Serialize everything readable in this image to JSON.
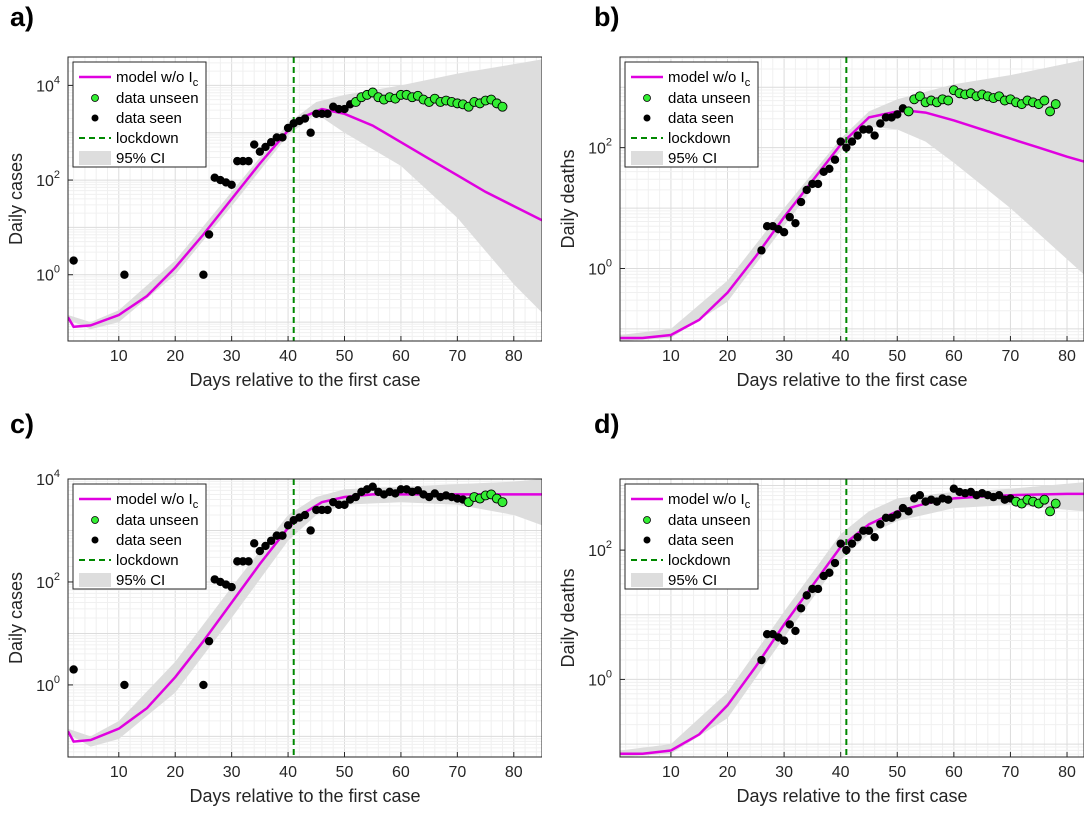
{
  "colors": {
    "model": "#e000e0",
    "unseen": "#33ee33",
    "seen": "#000000",
    "lockdown": "#008800",
    "ci": "#dddddd",
    "grid": "#e4e4e4"
  },
  "chart_data": [
    {
      "label": "a)",
      "type": "scatter",
      "xlabel": "Days relative to the first case",
      "ylabel": "Daily cases",
      "xlim": [
        1,
        85
      ],
      "ylog": true,
      "ylim_exp": [
        -1.4,
        4.6
      ],
      "xticks": [
        10,
        20,
        30,
        40,
        50,
        60,
        70,
        80
      ],
      "yticks": [
        {
          "exp": 0,
          "base": "10",
          "sup": "0"
        },
        {
          "exp": 2,
          "base": "10",
          "sup": "2"
        },
        {
          "exp": 4,
          "base": "10",
          "sup": "4"
        }
      ],
      "grid": true,
      "legend": {
        "position": "top-left",
        "model": "model w/o I",
        "model_sub": "c",
        "unseen": "data unseen",
        "seen": "data seen",
        "lockdown": "lockdown",
        "ci": "95% CI"
      },
      "lockdown_day": 41,
      "model_line": {
        "x": [
          1,
          2,
          5,
          10,
          15,
          20,
          25,
          30,
          35,
          40,
          43,
          46,
          50,
          55,
          60,
          65,
          70,
          75,
          80,
          85
        ],
        "log10y": [
          -0.9,
          -1.1,
          -1.07,
          -0.85,
          -0.45,
          0.15,
          0.85,
          1.6,
          2.35,
          3.05,
          3.35,
          3.5,
          3.4,
          3.15,
          2.8,
          2.45,
          2.1,
          1.75,
          1.45,
          1.15
        ]
      },
      "ci_upper": {
        "x": [
          1,
          5,
          10,
          20,
          30,
          40,
          45,
          50,
          60,
          70,
          85
        ],
        "log10y": [
          -0.85,
          -1.0,
          -0.75,
          0.3,
          1.75,
          3.2,
          3.65,
          3.8,
          4.0,
          4.25,
          4.55
        ]
      },
      "ci_lower": {
        "x": [
          1,
          5,
          10,
          20,
          30,
          40,
          45,
          50,
          60,
          70,
          80,
          85
        ],
        "log10y": [
          -0.95,
          -1.15,
          -1.0,
          0.0,
          1.45,
          2.95,
          3.4,
          3.0,
          2.3,
          1.2,
          -0.2,
          -0.8
        ]
      },
      "seen": {
        "x": [
          2,
          11,
          25,
          26,
          27,
          28,
          29,
          30,
          31,
          32,
          33,
          34,
          35,
          36,
          37,
          38,
          39,
          40,
          41,
          42,
          43,
          44,
          45,
          46,
          47,
          48,
          49,
          50,
          51,
          52
        ],
        "log10y": [
          0.3,
          0.0,
          0.0,
          0.85,
          2.05,
          2.0,
          1.95,
          1.9,
          2.4,
          2.4,
          2.4,
          2.75,
          2.6,
          2.7,
          2.8,
          2.9,
          2.9,
          3.1,
          3.2,
          3.25,
          3.3,
          3.0,
          3.4,
          3.4,
          3.4,
          3.55,
          3.5,
          3.5,
          3.6,
          3.65
        ]
      },
      "unseen": {
        "x": [
          52,
          53,
          54,
          55,
          56,
          57,
          58,
          59,
          60,
          61,
          62,
          63,
          64,
          65,
          66,
          67,
          68,
          69,
          70,
          71,
          72,
          73,
          74,
          75,
          76,
          77,
          78
        ],
        "log10y": [
          3.65,
          3.75,
          3.8,
          3.85,
          3.75,
          3.7,
          3.75,
          3.72,
          3.8,
          3.8,
          3.75,
          3.78,
          3.7,
          3.65,
          3.72,
          3.65,
          3.68,
          3.65,
          3.62,
          3.6,
          3.55,
          3.65,
          3.62,
          3.68,
          3.7,
          3.62,
          3.55
        ]
      }
    },
    {
      "label": "b)",
      "type": "scatter",
      "xlabel": "Days relative to the first case",
      "ylabel": "Daily deaths",
      "xlim": [
        1,
        83
      ],
      "ylog": true,
      "ylim_exp": [
        -1.2,
        3.5
      ],
      "xticks": [
        10,
        20,
        30,
        40,
        50,
        60,
        70,
        80
      ],
      "yticks": [
        {
          "exp": 0,
          "base": "10",
          "sup": "0"
        },
        {
          "exp": 2,
          "base": "10",
          "sup": "2"
        }
      ],
      "grid": true,
      "legend": {
        "position": "top-left",
        "model": "model w/o I",
        "model_sub": "c",
        "unseen": "data unseen",
        "seen": "data seen",
        "lockdown": "lockdown",
        "ci": "95% CI"
      },
      "lockdown_day": 41,
      "model_line": {
        "x": [
          1,
          5,
          10,
          15,
          20,
          25,
          30,
          35,
          40,
          45,
          50,
          53,
          55,
          60,
          65,
          70,
          75,
          80,
          83
        ],
        "log10y": [
          -1.15,
          -1.15,
          -1.1,
          -0.85,
          -0.4,
          0.2,
          0.85,
          1.45,
          2.05,
          2.5,
          2.6,
          2.6,
          2.58,
          2.45,
          2.3,
          2.15,
          2.0,
          1.85,
          1.77
        ]
      },
      "ci_upper": {
        "x": [
          1,
          10,
          20,
          30,
          40,
          45,
          50,
          60,
          70,
          83
        ],
        "log10y": [
          -1.1,
          -1.0,
          -0.2,
          1.0,
          2.15,
          2.6,
          2.8,
          3.05,
          3.2,
          3.45
        ]
      },
      "ci_lower": {
        "x": [
          1,
          10,
          20,
          30,
          40,
          45,
          50,
          55,
          60,
          70,
          83
        ],
        "log10y": [
          -1.2,
          -1.15,
          -0.55,
          0.7,
          1.95,
          2.35,
          2.3,
          2.1,
          1.75,
          1.0,
          -0.1
        ]
      },
      "seen": {
        "x": [
          26,
          27,
          28,
          29,
          30,
          31,
          32,
          33,
          34,
          35,
          36,
          37,
          38,
          39,
          40,
          41,
          42,
          43,
          44,
          45,
          46,
          47,
          48,
          49,
          50,
          51
        ],
        "log10y": [
          0.3,
          0.7,
          0.7,
          0.65,
          0.6,
          0.85,
          0.75,
          1.1,
          1.3,
          1.4,
          1.4,
          1.6,
          1.65,
          1.8,
          2.1,
          2.0,
          2.1,
          2.2,
          2.3,
          2.3,
          2.2,
          2.4,
          2.5,
          2.5,
          2.55,
          2.65
        ]
      },
      "unseen": {
        "x": [
          52,
          53,
          54,
          55,
          56,
          57,
          58,
          59,
          60,
          61,
          62,
          63,
          64,
          65,
          66,
          67,
          68,
          69,
          70,
          71,
          72,
          73,
          74,
          75,
          76,
          77,
          78
        ],
        "log10y": [
          2.6,
          2.8,
          2.85,
          2.75,
          2.78,
          2.75,
          2.8,
          2.78,
          2.95,
          2.9,
          2.88,
          2.9,
          2.85,
          2.88,
          2.85,
          2.82,
          2.85,
          2.78,
          2.8,
          2.75,
          2.72,
          2.78,
          2.75,
          2.72,
          2.78,
          2.6,
          2.72
        ]
      }
    },
    {
      "label": "c)",
      "type": "scatter",
      "xlabel": "Days relative to the first case",
      "ylabel": "Daily cases",
      "xlim": [
        1,
        85
      ],
      "ylog": true,
      "ylim_exp": [
        -1.4,
        4.0
      ],
      "xticks": [
        10,
        20,
        30,
        40,
        50,
        60,
        70,
        80
      ],
      "yticks": [
        {
          "exp": 0,
          "base": "10",
          "sup": "0"
        },
        {
          "exp": 2,
          "base": "10",
          "sup": "2"
        },
        {
          "exp": 4,
          "base": "10",
          "sup": "4"
        }
      ],
      "grid": true,
      "legend": {
        "position": "top-left",
        "model": "model w/o I",
        "model_sub": "c",
        "unseen": "data unseen",
        "seen": "data seen",
        "lockdown": "lockdown",
        "ci": "95% CI"
      },
      "lockdown_day": 41,
      "model_line": {
        "x": [
          1,
          2,
          5,
          10,
          15,
          20,
          25,
          30,
          35,
          40,
          43,
          46,
          50,
          55,
          60,
          65,
          70,
          75,
          80,
          85
        ],
        "log10y": [
          -0.9,
          -1.1,
          -1.07,
          -0.85,
          -0.45,
          0.15,
          0.85,
          1.6,
          2.35,
          3.05,
          3.35,
          3.55,
          3.65,
          3.7,
          3.7,
          3.7,
          3.7,
          3.7,
          3.7,
          3.7
        ]
      },
      "ci_upper": {
        "x": [
          1,
          5,
          10,
          20,
          30,
          40,
          45,
          50,
          60,
          70,
          80,
          85
        ],
        "log10y": [
          -0.85,
          -1.0,
          -0.7,
          0.45,
          1.9,
          3.3,
          3.65,
          3.8,
          3.85,
          3.9,
          3.95,
          4.0
        ]
      },
      "ci_lower": {
        "x": [
          1,
          5,
          10,
          20,
          30,
          40,
          45,
          50,
          60,
          70,
          80,
          85
        ],
        "log10y": [
          -0.95,
          -1.2,
          -1.05,
          -0.15,
          1.3,
          2.8,
          3.3,
          3.5,
          3.55,
          3.5,
          3.3,
          3.1
        ]
      },
      "seen": {
        "x": [
          2,
          11,
          25,
          26,
          27,
          28,
          29,
          30,
          31,
          32,
          33,
          34,
          35,
          36,
          37,
          38,
          39,
          40,
          41,
          42,
          43,
          44,
          45,
          46,
          47,
          48,
          49,
          50,
          51,
          52,
          53,
          54,
          55,
          56,
          57,
          58,
          59,
          60,
          61,
          62,
          63,
          64,
          65,
          66,
          67,
          68,
          69,
          70,
          71
        ],
        "log10y": [
          0.3,
          0.0,
          0.0,
          0.85,
          2.05,
          2.0,
          1.95,
          1.9,
          2.4,
          2.4,
          2.4,
          2.75,
          2.6,
          2.7,
          2.8,
          2.9,
          2.9,
          3.1,
          3.2,
          3.25,
          3.3,
          3.0,
          3.4,
          3.4,
          3.4,
          3.55,
          3.5,
          3.5,
          3.6,
          3.65,
          3.75,
          3.8,
          3.85,
          3.75,
          3.7,
          3.75,
          3.72,
          3.8,
          3.8,
          3.75,
          3.78,
          3.7,
          3.65,
          3.72,
          3.65,
          3.68,
          3.65,
          3.62,
          3.6
        ]
      },
      "unseen": {
        "x": [
          72,
          73,
          74,
          75,
          76,
          77,
          78
        ],
        "log10y": [
          3.55,
          3.65,
          3.62,
          3.68,
          3.7,
          3.62,
          3.55
        ]
      }
    },
    {
      "label": "d)",
      "type": "scatter",
      "xlabel": "Days relative to the first case",
      "ylabel": "Daily deaths",
      "xlim": [
        1,
        83
      ],
      "ylog": true,
      "ylim_exp": [
        -1.2,
        3.1
      ],
      "xticks": [
        10,
        20,
        30,
        40,
        50,
        60,
        70,
        80
      ],
      "yticks": [
        {
          "exp": 0,
          "base": "10",
          "sup": "0"
        },
        {
          "exp": 2,
          "base": "10",
          "sup": "2"
        }
      ],
      "grid": true,
      "legend": {
        "position": "top-left",
        "model": "model w/o I",
        "model_sub": "c",
        "unseen": "data unseen",
        "seen": "data seen",
        "lockdown": "lockdown",
        "ci": "95% CI"
      },
      "lockdown_day": 41,
      "model_line": {
        "x": [
          1,
          5,
          10,
          15,
          20,
          25,
          30,
          35,
          40,
          45,
          50,
          55,
          60,
          65,
          70,
          75,
          80,
          83
        ],
        "log10y": [
          -1.15,
          -1.15,
          -1.1,
          -0.85,
          -0.4,
          0.2,
          0.85,
          1.45,
          2.05,
          2.4,
          2.6,
          2.72,
          2.8,
          2.83,
          2.85,
          2.86,
          2.87,
          2.87
        ]
      },
      "ci_upper": {
        "x": [
          1,
          10,
          20,
          30,
          40,
          45,
          50,
          60,
          70,
          83
        ],
        "log10y": [
          -1.1,
          -1.0,
          -0.2,
          1.05,
          2.25,
          2.6,
          2.8,
          2.9,
          2.95,
          3.05
        ]
      },
      "ci_lower": {
        "x": [
          1,
          10,
          20,
          30,
          40,
          45,
          50,
          60,
          70,
          83
        ],
        "log10y": [
          -1.2,
          -1.15,
          -0.6,
          0.65,
          1.85,
          2.25,
          2.45,
          2.65,
          2.7,
          2.6
        ]
      },
      "seen": {
        "x": [
          26,
          27,
          28,
          29,
          30,
          31,
          32,
          33,
          34,
          35,
          36,
          37,
          38,
          39,
          40,
          41,
          42,
          43,
          44,
          45,
          46,
          47,
          48,
          49,
          50,
          51,
          52,
          53,
          54,
          55,
          56,
          57,
          58,
          59,
          60,
          61,
          62,
          63,
          64,
          65,
          66,
          67,
          68,
          69,
          70
        ],
        "log10y": [
          0.3,
          0.7,
          0.7,
          0.65,
          0.6,
          0.85,
          0.75,
          1.1,
          1.3,
          1.4,
          1.4,
          1.6,
          1.65,
          1.8,
          2.1,
          2.0,
          2.1,
          2.2,
          2.3,
          2.3,
          2.2,
          2.4,
          2.5,
          2.5,
          2.55,
          2.65,
          2.6,
          2.8,
          2.85,
          2.75,
          2.78,
          2.75,
          2.8,
          2.78,
          2.95,
          2.9,
          2.88,
          2.9,
          2.85,
          2.88,
          2.85,
          2.82,
          2.85,
          2.78,
          2.8
        ]
      },
      "unseen": {
        "x": [
          71,
          72,
          73,
          74,
          75,
          76,
          77,
          78
        ],
        "log10y": [
          2.75,
          2.72,
          2.78,
          2.75,
          2.72,
          2.78,
          2.6,
          2.72
        ]
      }
    }
  ]
}
